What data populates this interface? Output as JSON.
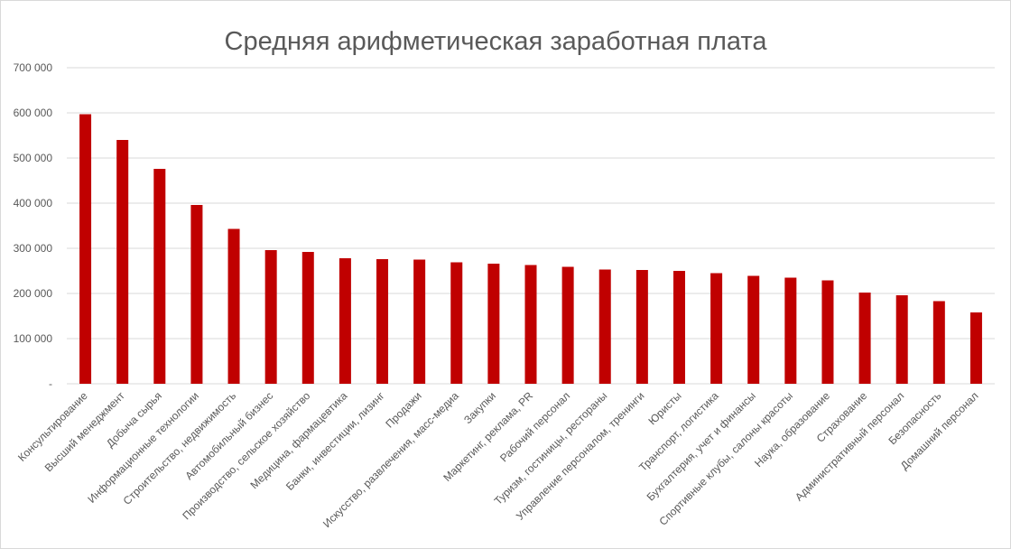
{
  "chart_data": {
    "type": "bar",
    "title": "Средняя арифметическая заработная плата",
    "xlabel": "",
    "ylabel": "",
    "ylim": [
      0,
      700000
    ],
    "y_ticks": [
      "-",
      "100 000",
      "200 000",
      "300 000",
      "400 000",
      "500 000",
      "600 000",
      "700 000"
    ],
    "y_tick_values": [
      0,
      100000,
      200000,
      300000,
      400000,
      500000,
      600000,
      700000
    ],
    "grid": true,
    "legend": "none",
    "bar_color": "#c00000",
    "categories": [
      "Консультирование",
      "Высший менеджмент",
      "Добыча сырья",
      "Информационные технологии",
      "Строительство, недвижимость",
      "Автомобильный бизнес",
      "Производство, сельское хозяйство",
      "Медицина, фармацевтика",
      "Банки, инвестиции, лизинг",
      "Продажи",
      "Искусство, развлечения, масс-медиа",
      "Закупки",
      "Маркетинг, реклама, PR",
      "Рабочий персонал",
      "Туризм, гостиницы, рестораны",
      "Управление персоналом, тренинги",
      "Юристы",
      "Транспорт, логистика",
      "Бухгалтерия, учет и финансы",
      "Спортивные клубы, салоны красоты",
      "Наука, образование",
      "Страхование",
      "Административный персонал",
      "Безопасность",
      "Домашний персонал"
    ],
    "values": [
      597000,
      540000,
      476000,
      396000,
      343000,
      296000,
      292000,
      278000,
      276000,
      275000,
      269000,
      266000,
      263000,
      259000,
      253000,
      252000,
      250000,
      245000,
      239000,
      235000,
      229000,
      202000,
      196000,
      183000,
      158000
    ]
  }
}
